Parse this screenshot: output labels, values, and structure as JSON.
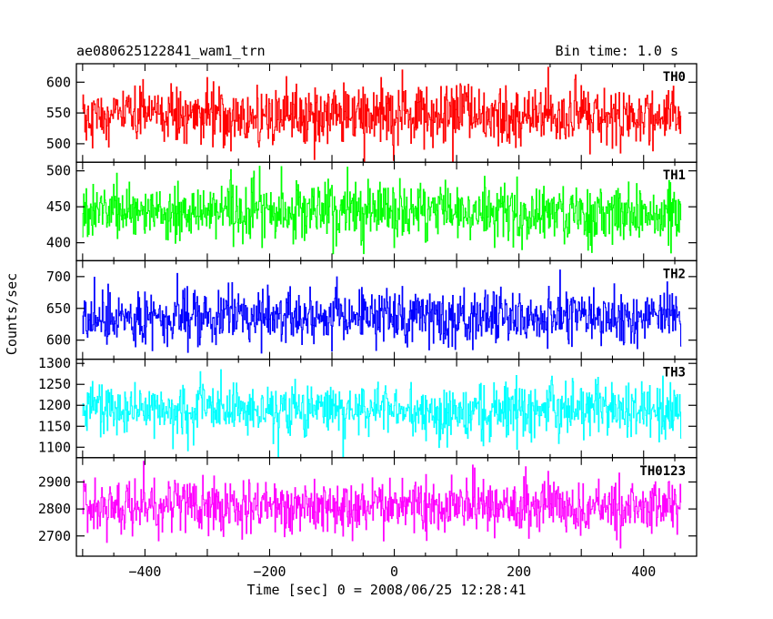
{
  "header": {
    "title": "ae080625122841_wam1_trn",
    "bin_time": "Bin time: 1.0 s"
  },
  "chart_data": {
    "type": "line",
    "xlabel": "Time [sec] 0 = 2008/06/25 12:28:41",
    "ylabel": "Counts/sec",
    "xlim": [
      -510,
      485
    ],
    "x_range": [
      -500,
      460
    ],
    "x_ticks": [
      -400,
      -200,
      0,
      200,
      400
    ],
    "x_tick_labels": [
      "−400",
      "−200",
      "0",
      "200",
      "400"
    ],
    "bin_time_s": 1.0,
    "panels": [
      {
        "name": "TH0",
        "color": "#ff0000",
        "ylim": [
          470,
          630
        ],
        "mean": 545,
        "noise_sd": 24,
        "y_ticks": [
          500,
          550,
          600
        ],
        "y_tick_labels": [
          "500",
          "550",
          "600"
        ]
      },
      {
        "name": "TH1",
        "color": "#00ff00",
        "ylim": [
          375,
          512
        ],
        "mean": 443,
        "noise_sd": 20,
        "y_ticks": [
          400,
          450,
          500
        ],
        "y_tick_labels": [
          "400",
          "450",
          "500"
        ]
      },
      {
        "name": "TH2",
        "color": "#0000ff",
        "ylim": [
          570,
          725
        ],
        "mean": 637,
        "noise_sd": 22,
        "y_ticks": [
          600,
          650,
          700
        ],
        "y_tick_labels": [
          "600",
          "650",
          "700"
        ]
      },
      {
        "name": "TH3",
        "color": "#00ffff",
        "ylim": [
          1075,
          1310
        ],
        "mean": 1190,
        "noise_sd": 32,
        "y_ticks": [
          1100,
          1150,
          1200,
          1250,
          1300
        ],
        "y_tick_labels": [
          "1100",
          "1150",
          "1200",
          "1250",
          "1300"
        ]
      },
      {
        "name": "TH0123",
        "color": "#ff00ff",
        "ylim": [
          2625,
          2990
        ],
        "mean": 2810,
        "noise_sd": 50,
        "y_ticks": [
          2700,
          2800,
          2900
        ],
        "y_tick_labels": [
          "2700",
          "2800",
          "2900"
        ]
      }
    ]
  }
}
